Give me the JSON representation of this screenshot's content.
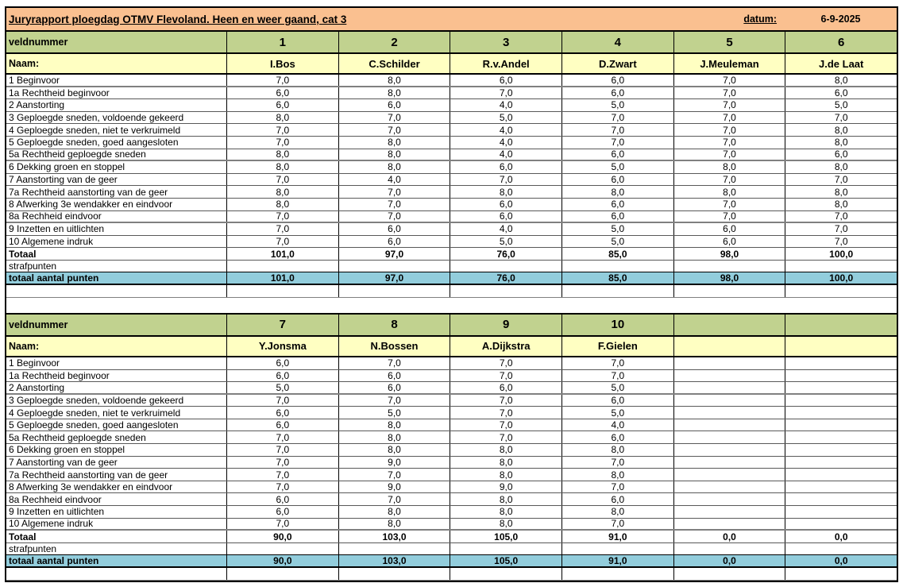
{
  "header": {
    "title": "Juryrapport ploegdag OTMV Flevoland. Heen en weer gaand, cat 3",
    "date_label": "datum:",
    "date_value": "6-9-2025"
  },
  "labels": {
    "veldnummer": "veldnummer",
    "naam": "Naam:",
    "totaal": "Totaal",
    "strafpunten": "strafpunten",
    "totaal_aantal_punten": "totaal aantal punten"
  },
  "criteria": [
    "1 Beginvoor",
    "1a Rechtheid beginvoor",
    "2 Aanstorting",
    "3 Geploegde sneden, voldoende gekeerd",
    "4 Geploegde sneden, niet te verkruimeld",
    "5 Geploegde sneden, goed aangesloten",
    "5a Rechtheid geploegde sneden",
    "6 Dekking groen en stoppel",
    "7 Aanstorting van de geer",
    "7a Rechtheid aanstorting van de geer",
    "8 Afwerking 3e wendakker en eindvoor",
    "8a Rechheid eindvoor",
    "9 Inzetten en uitlichten",
    "10 Algemene indruk"
  ],
  "colors": {
    "header_orange": "#FAC090",
    "field_green": "#C1D28F",
    "name_yellow": "#FFFFC2",
    "total_blue": "#92CDDC"
  },
  "tables": [
    {
      "field_numbers": [
        "1",
        "2",
        "3",
        "4",
        "5",
        "6"
      ],
      "names": [
        "I.Bos",
        "C.Schilder",
        "R.v.Andel",
        "D.Zwart",
        "J.Meuleman",
        "J.de Laat"
      ],
      "scores": [
        [
          "7,0",
          "8,0",
          "6,0",
          "6,0",
          "7,0",
          "8,0"
        ],
        [
          "6,0",
          "8,0",
          "7,0",
          "6,0",
          "7,0",
          "6,0"
        ],
        [
          "6,0",
          "6,0",
          "4,0",
          "5,0",
          "7,0",
          "5,0"
        ],
        [
          "8,0",
          "7,0",
          "5,0",
          "7,0",
          "7,0",
          "7,0"
        ],
        [
          "7,0",
          "7,0",
          "4,0",
          "7,0",
          "7,0",
          "8,0"
        ],
        [
          "7,0",
          "8,0",
          "4,0",
          "7,0",
          "7,0",
          "8,0"
        ],
        [
          "8,0",
          "8,0",
          "4,0",
          "6,0",
          "7,0",
          "6,0"
        ],
        [
          "8,0",
          "8,0",
          "6,0",
          "5,0",
          "8,0",
          "8,0"
        ],
        [
          "7,0",
          "4,0",
          "7,0",
          "6,0",
          "7,0",
          "7,0"
        ],
        [
          "8,0",
          "7,0",
          "8,0",
          "8,0",
          "8,0",
          "8,0"
        ],
        [
          "8,0",
          "7,0",
          "6,0",
          "6,0",
          "7,0",
          "8,0"
        ],
        [
          "7,0",
          "7,0",
          "6,0",
          "6,0",
          "7,0",
          "7,0"
        ],
        [
          "7,0",
          "6,0",
          "4,0",
          "5,0",
          "6,0",
          "7,0"
        ],
        [
          "7,0",
          "6,0",
          "5,0",
          "5,0",
          "6,0",
          "7,0"
        ]
      ],
      "totals": [
        "101,0",
        "97,0",
        "76,0",
        "85,0",
        "98,0",
        "100,0"
      ],
      "strafpunten": [
        "",
        "",
        "",
        "",
        "",
        ""
      ],
      "final_totals": [
        "101,0",
        "97,0",
        "76,0",
        "85,0",
        "98,0",
        "100,0"
      ]
    },
    {
      "field_numbers": [
        "7",
        "8",
        "9",
        "10",
        "",
        ""
      ],
      "names": [
        "Y.Jonsma",
        "N.Bossen",
        "A.Dijkstra",
        "F.Gielen",
        "",
        ""
      ],
      "scores": [
        [
          "6,0",
          "7,0",
          "7,0",
          "7,0",
          "",
          ""
        ],
        [
          "6,0",
          "6,0",
          "7,0",
          "7,0",
          "",
          ""
        ],
        [
          "5,0",
          "6,0",
          "6,0",
          "5,0",
          "",
          ""
        ],
        [
          "7,0",
          "7,0",
          "7,0",
          "6,0",
          "",
          ""
        ],
        [
          "6,0",
          "5,0",
          "7,0",
          "5,0",
          "",
          ""
        ],
        [
          "6,0",
          "8,0",
          "7,0",
          "4,0",
          "",
          ""
        ],
        [
          "7,0",
          "8,0",
          "7,0",
          "6,0",
          "",
          ""
        ],
        [
          "7,0",
          "8,0",
          "8,0",
          "8,0",
          "",
          ""
        ],
        [
          "7,0",
          "9,0",
          "8,0",
          "7,0",
          "",
          ""
        ],
        [
          "7,0",
          "7,0",
          "8,0",
          "8,0",
          "",
          ""
        ],
        [
          "7,0",
          "9,0",
          "9,0",
          "7,0",
          "",
          ""
        ],
        [
          "6,0",
          "7,0",
          "8,0",
          "6,0",
          "",
          ""
        ],
        [
          "6,0",
          "8,0",
          "8,0",
          "8,0",
          "",
          ""
        ],
        [
          "7,0",
          "8,0",
          "8,0",
          "7,0",
          "",
          ""
        ]
      ],
      "totals": [
        "90,0",
        "103,0",
        "105,0",
        "91,0",
        "0,0",
        "0,0"
      ],
      "strafpunten": [
        "",
        "",
        "",
        "",
        "",
        ""
      ],
      "final_totals": [
        "90,0",
        "103,0",
        "105,0",
        "91,0",
        "0,0",
        "0,0"
      ]
    }
  ]
}
